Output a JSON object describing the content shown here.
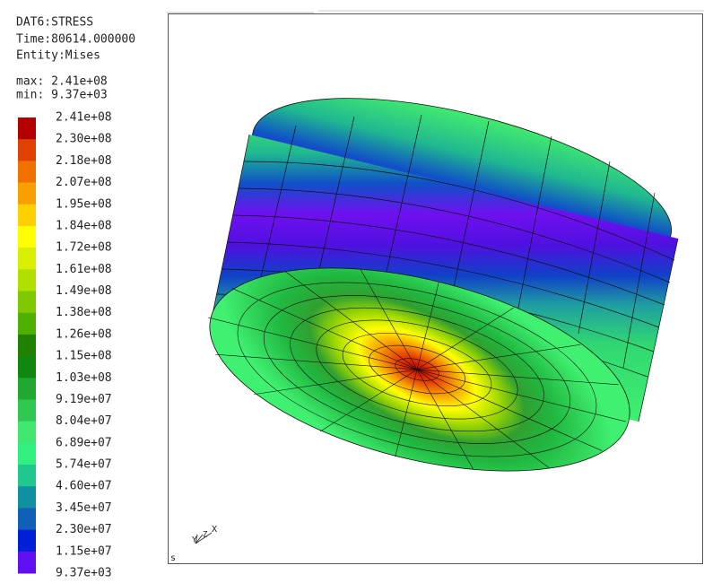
{
  "header": {
    "dataset": "DAT6:STRESS",
    "time": "Time:80614.000000",
    "entity": "Entity:Mises",
    "max": "max: 2.41e+08",
    "min": "min: 9.37e+03"
  },
  "legend": {
    "labels": [
      "2.41e+08",
      "2.30e+08",
      "2.18e+08",
      "2.07e+08",
      "1.95e+08",
      "1.84e+08",
      "1.72e+08",
      "1.61e+08",
      "1.49e+08",
      "1.38e+08",
      "1.26e+08",
      "1.15e+08",
      "1.03e+08",
      "9.19e+07",
      "8.04e+07",
      "6.89e+07",
      "5.74e+07",
      "4.60e+07",
      "3.45e+07",
      "2.30e+07",
      "1.15e+07",
      "9.37e+03"
    ],
    "colors": [
      "#b40000",
      "#e04000",
      "#f07000",
      "#f8a000",
      "#ffd000",
      "#ffff00",
      "#d8f000",
      "#b0e000",
      "#80c800",
      "#50b000",
      "#208000",
      "#108810",
      "#20a830",
      "#30c850",
      "#40e870",
      "#30f080",
      "#20c890",
      "#1090a0",
      "#1060b8",
      "#0020d8",
      "#6010f0"
    ]
  },
  "triad": {
    "y": "Y",
    "z": "Z",
    "x": "X"
  },
  "corner": "s"
}
